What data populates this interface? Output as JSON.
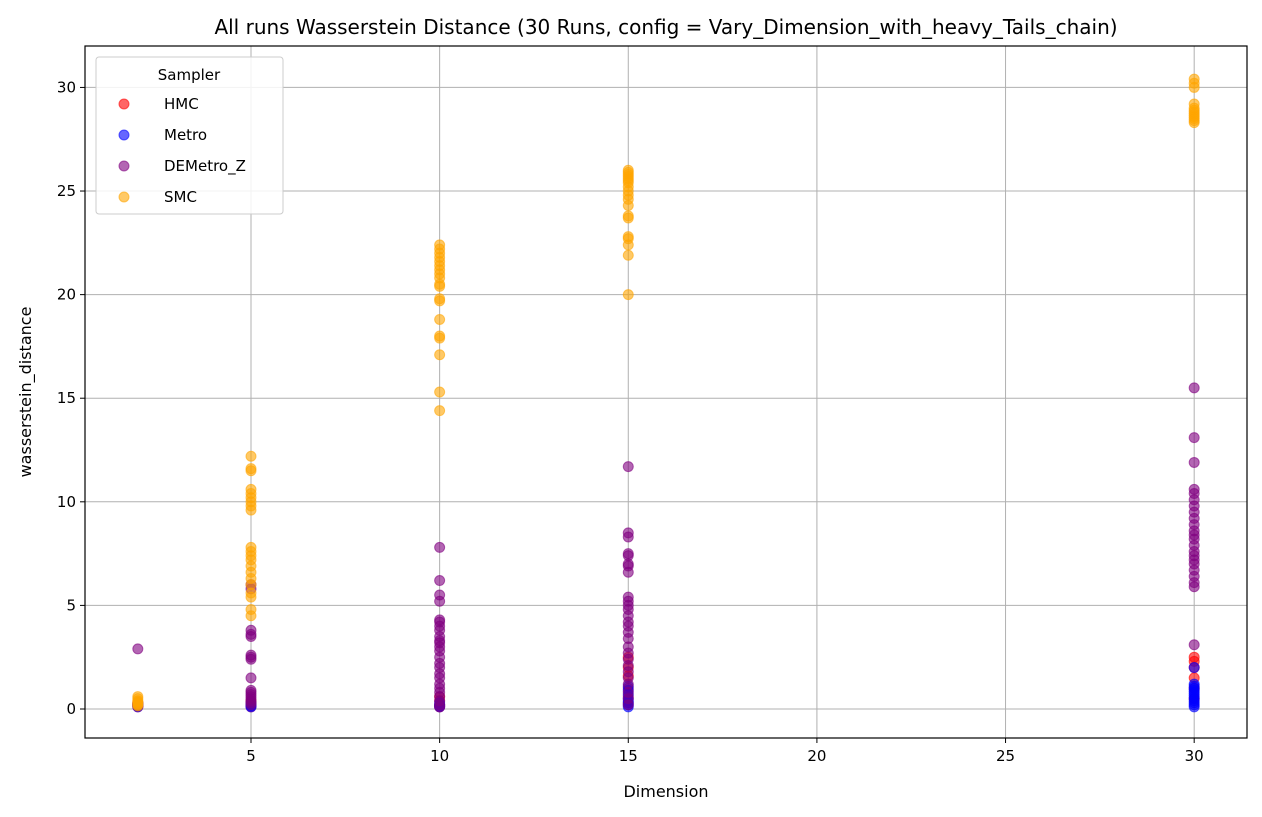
{
  "chart_data": {
    "type": "scatter",
    "title": "All runs Wasserstein Distance (30 Runs, config = Vary_Dimension_with_heavy_Tails_chain)",
    "xlabel": "Dimension",
    "ylabel": "wasserstein_distance",
    "xlim": [
      0.6,
      31.4
    ],
    "ylim": [
      -1.4,
      32.0
    ],
    "xticks": [
      5,
      10,
      15,
      20,
      25,
      30
    ],
    "yticks": [
      0,
      5,
      10,
      15,
      20,
      25,
      30
    ],
    "grid": true,
    "legend": {
      "title": "Sampler",
      "position": "top-left"
    },
    "series": [
      {
        "name": "HMC",
        "color": "#ff0000",
        "points": [
          [
            2,
            0.1
          ],
          [
            2,
            0.15
          ],
          [
            2,
            0.2
          ],
          [
            2,
            0.25
          ],
          [
            2,
            0.3
          ],
          [
            5,
            0.1
          ],
          [
            5,
            0.2
          ],
          [
            5,
            0.3
          ],
          [
            5,
            0.4
          ],
          [
            10,
            0.1
          ],
          [
            10,
            0.2
          ],
          [
            10,
            0.4
          ],
          [
            10,
            0.6
          ],
          [
            15,
            0.3
          ],
          [
            15,
            0.6
          ],
          [
            15,
            1.0
          ],
          [
            15,
            1.6
          ],
          [
            15,
            2.0
          ],
          [
            15,
            2.5
          ],
          [
            30,
            0.5
          ],
          [
            30,
            1.0
          ],
          [
            30,
            1.5
          ],
          [
            30,
            2.0
          ],
          [
            30,
            2.3
          ],
          [
            30,
            2.5
          ]
        ]
      },
      {
        "name": "Metro",
        "color": "#0000ff",
        "points": [
          [
            2,
            0.1
          ],
          [
            2,
            0.15
          ],
          [
            2,
            0.2
          ],
          [
            2,
            0.25
          ],
          [
            5,
            0.1
          ],
          [
            5,
            0.15
          ],
          [
            5,
            0.2
          ],
          [
            5,
            0.3
          ],
          [
            10,
            0.1
          ],
          [
            10,
            0.15
          ],
          [
            10,
            0.2
          ],
          [
            10,
            0.3
          ],
          [
            15,
            0.1
          ],
          [
            15,
            0.2
          ],
          [
            15,
            0.3
          ],
          [
            15,
            0.4
          ],
          [
            15,
            0.5
          ],
          [
            15,
            0.7
          ],
          [
            15,
            0.9
          ],
          [
            15,
            1.1
          ],
          [
            30,
            0.1
          ],
          [
            30,
            0.2
          ],
          [
            30,
            0.3
          ],
          [
            30,
            0.4
          ],
          [
            30,
            0.5
          ],
          [
            30,
            0.6
          ],
          [
            30,
            0.7
          ],
          [
            30,
            0.8
          ],
          [
            30,
            0.9
          ],
          [
            30,
            1.0
          ],
          [
            30,
            1.1
          ],
          [
            30,
            1.2
          ],
          [
            30,
            2.0
          ]
        ]
      },
      {
        "name": "DEMetro_Z",
        "color": "#800080",
        "points": [
          [
            2,
            0.15
          ],
          [
            2,
            0.2
          ],
          [
            2,
            0.25
          ],
          [
            2,
            0.3
          ],
          [
            2,
            2.9
          ],
          [
            5,
            0.2
          ],
          [
            5,
            0.3
          ],
          [
            5,
            0.4
          ],
          [
            5,
            0.5
          ],
          [
            5,
            0.6
          ],
          [
            5,
            0.7
          ],
          [
            5,
            0.8
          ],
          [
            5,
            0.9
          ],
          [
            5,
            1.5
          ],
          [
            5,
            2.4
          ],
          [
            5,
            2.5
          ],
          [
            5,
            2.6
          ],
          [
            5,
            3.5
          ],
          [
            5,
            3.6
          ],
          [
            5,
            3.8
          ],
          [
            5,
            5.8
          ],
          [
            5,
            6.0
          ],
          [
            10,
            0.1
          ],
          [
            10,
            0.2
          ],
          [
            10,
            0.4
          ],
          [
            10,
            0.6
          ],
          [
            10,
            0.8
          ],
          [
            10,
            1.0
          ],
          [
            10,
            1.2
          ],
          [
            10,
            1.5
          ],
          [
            10,
            1.7
          ],
          [
            10,
            2.0
          ],
          [
            10,
            2.2
          ],
          [
            10,
            2.5
          ],
          [
            10,
            2.8
          ],
          [
            10,
            3.0
          ],
          [
            10,
            3.2
          ],
          [
            10,
            3.3
          ],
          [
            10,
            3.5
          ],
          [
            10,
            3.8
          ],
          [
            10,
            4.0
          ],
          [
            10,
            4.2
          ],
          [
            10,
            4.3
          ],
          [
            10,
            5.2
          ],
          [
            10,
            5.5
          ],
          [
            10,
            6.2
          ],
          [
            10,
            7.8
          ],
          [
            15,
            0.2
          ],
          [
            15,
            0.5
          ],
          [
            15,
            0.8
          ],
          [
            15,
            1.2
          ],
          [
            15,
            1.5
          ],
          [
            15,
            1.8
          ],
          [
            15,
            2.1
          ],
          [
            15,
            2.4
          ],
          [
            15,
            2.7
          ],
          [
            15,
            3.0
          ],
          [
            15,
            3.4
          ],
          [
            15,
            3.7
          ],
          [
            15,
            4.0
          ],
          [
            15,
            4.2
          ],
          [
            15,
            4.5
          ],
          [
            15,
            4.8
          ],
          [
            15,
            5.0
          ],
          [
            15,
            5.2
          ],
          [
            15,
            5.4
          ],
          [
            15,
            6.6
          ],
          [
            15,
            6.9
          ],
          [
            15,
            7.0
          ],
          [
            15,
            7.4
          ],
          [
            15,
            7.5
          ],
          [
            15,
            8.3
          ],
          [
            15,
            8.5
          ],
          [
            15,
            11.7
          ],
          [
            30,
            3.1
          ],
          [
            30,
            5.9
          ],
          [
            30,
            6.1
          ],
          [
            30,
            6.4
          ],
          [
            30,
            6.7
          ],
          [
            30,
            7.0
          ],
          [
            30,
            7.2
          ],
          [
            30,
            7.4
          ],
          [
            30,
            7.6
          ],
          [
            30,
            7.9
          ],
          [
            30,
            8.2
          ],
          [
            30,
            8.4
          ],
          [
            30,
            8.6
          ],
          [
            30,
            8.9
          ],
          [
            30,
            9.2
          ],
          [
            30,
            9.5
          ],
          [
            30,
            9.8
          ],
          [
            30,
            10.1
          ],
          [
            30,
            10.4
          ],
          [
            30,
            10.6
          ],
          [
            30,
            11.9
          ],
          [
            30,
            13.1
          ],
          [
            30,
            15.5
          ]
        ]
      },
      {
        "name": "SMC",
        "color": "#ffa500",
        "points": [
          [
            2,
            0.15
          ],
          [
            2,
            0.2
          ],
          [
            2,
            0.25
          ],
          [
            2,
            0.3
          ],
          [
            2,
            0.35
          ],
          [
            2,
            0.4
          ],
          [
            2,
            0.5
          ],
          [
            2,
            0.6
          ],
          [
            5,
            4.5
          ],
          [
            5,
            4.8
          ],
          [
            5,
            5.4
          ],
          [
            5,
            5.6
          ],
          [
            5,
            6.0
          ],
          [
            5,
            6.3
          ],
          [
            5,
            6.6
          ],
          [
            5,
            6.9
          ],
          [
            5,
            7.2
          ],
          [
            5,
            7.4
          ],
          [
            5,
            7.6
          ],
          [
            5,
            7.8
          ],
          [
            5,
            9.6
          ],
          [
            5,
            9.8
          ],
          [
            5,
            10.0
          ],
          [
            5,
            10.2
          ],
          [
            5,
            10.4
          ],
          [
            5,
            10.6
          ],
          [
            5,
            11.5
          ],
          [
            5,
            11.6
          ],
          [
            5,
            12.2
          ],
          [
            10,
            14.4
          ],
          [
            10,
            15.3
          ],
          [
            10,
            17.1
          ],
          [
            10,
            17.9
          ],
          [
            10,
            18.0
          ],
          [
            10,
            18.8
          ],
          [
            10,
            19.7
          ],
          [
            10,
            19.8
          ],
          [
            10,
            20.4
          ],
          [
            10,
            20.5
          ],
          [
            10,
            20.8
          ],
          [
            10,
            21.0
          ],
          [
            10,
            21.2
          ],
          [
            10,
            21.4
          ],
          [
            10,
            21.6
          ],
          [
            10,
            21.8
          ],
          [
            10,
            22.0
          ],
          [
            10,
            22.2
          ],
          [
            10,
            22.4
          ],
          [
            15,
            20.0
          ],
          [
            15,
            21.9
          ],
          [
            15,
            22.4
          ],
          [
            15,
            22.7
          ],
          [
            15,
            22.8
          ],
          [
            15,
            23.7
          ],
          [
            15,
            23.8
          ],
          [
            15,
            24.3
          ],
          [
            15,
            24.6
          ],
          [
            15,
            24.8
          ],
          [
            15,
            25.0
          ],
          [
            15,
            25.2
          ],
          [
            15,
            25.4
          ],
          [
            15,
            25.5
          ],
          [
            15,
            25.6
          ],
          [
            15,
            25.7
          ],
          [
            15,
            25.8
          ],
          [
            15,
            25.9
          ],
          [
            15,
            26.0
          ],
          [
            30,
            28.3
          ],
          [
            30,
            28.4
          ],
          [
            30,
            28.5
          ],
          [
            30,
            28.6
          ],
          [
            30,
            28.7
          ],
          [
            30,
            28.8
          ],
          [
            30,
            28.9
          ],
          [
            30,
            29.0
          ],
          [
            30,
            29.2
          ],
          [
            30,
            30.0
          ],
          [
            30,
            30.2
          ],
          [
            30,
            30.4
          ]
        ]
      }
    ]
  }
}
